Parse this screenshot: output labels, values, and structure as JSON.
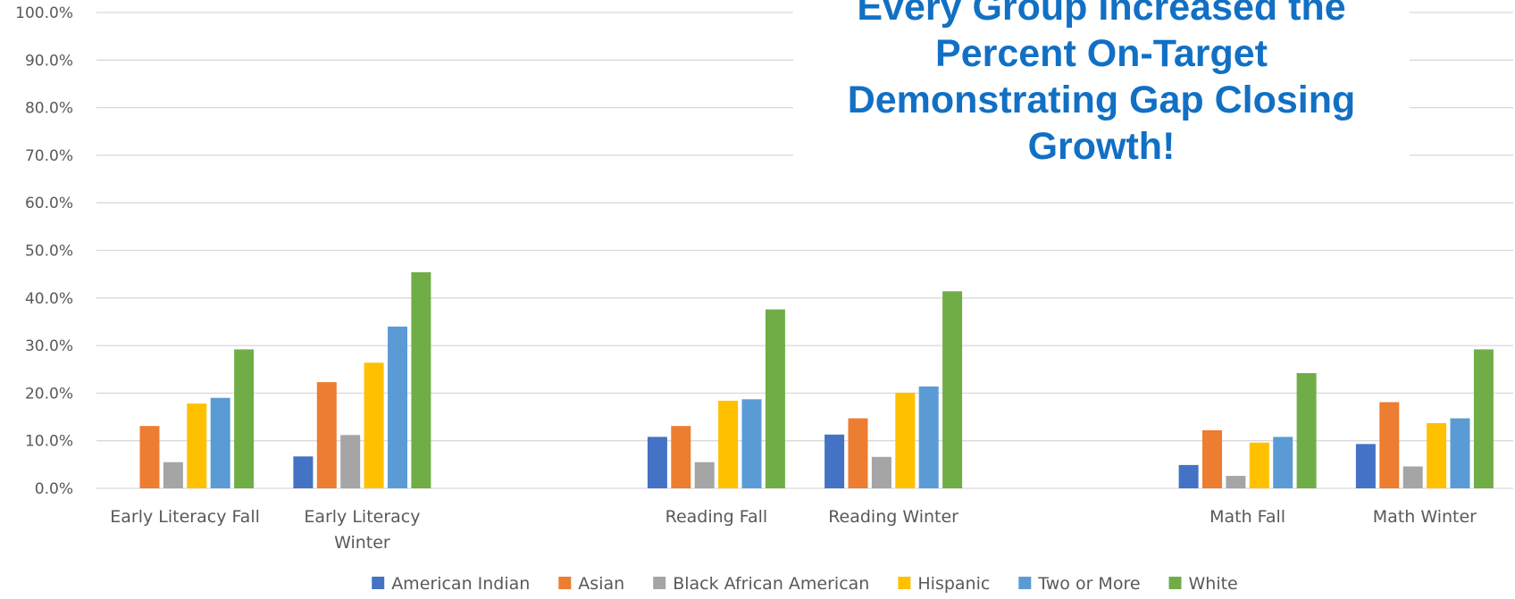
{
  "chart_data": {
    "type": "bar",
    "title": "",
    "annotation": {
      "lines": [
        "Every Group Increased the",
        "Percent On-Target",
        "Demonstrating Gap Closing",
        "Growth!"
      ],
      "color": "#1170c4"
    },
    "categories": [
      [
        "Early Literacy Fall"
      ],
      [
        "Early Literacy",
        "Winter"
      ],
      [
        ""
      ],
      [
        "Reading Fall"
      ],
      [
        "Reading Winter"
      ],
      [
        ""
      ],
      [
        "Math Fall"
      ],
      [
        "Math Winter"
      ]
    ],
    "series": [
      {
        "name": "American Indian",
        "color": "#4472c4",
        "values": [
          null,
          6.7,
          null,
          10.8,
          11.3,
          null,
          4.9,
          9.3
        ]
      },
      {
        "name": "Asian",
        "color": "#ed7d31",
        "values": [
          13.1,
          22.3,
          null,
          13.1,
          14.7,
          null,
          12.2,
          18.1
        ]
      },
      {
        "name": "Black African American",
        "color": "#a5a5a5",
        "values": [
          5.5,
          11.2,
          null,
          5.5,
          6.6,
          null,
          2.6,
          4.6
        ]
      },
      {
        "name": "Hispanic",
        "color": "#ffc000",
        "values": [
          17.8,
          26.4,
          null,
          18.4,
          20.1,
          null,
          9.6,
          13.7
        ]
      },
      {
        "name": "Two or More",
        "color": "#5b9bd5",
        "values": [
          19.0,
          34.0,
          null,
          18.7,
          21.4,
          null,
          10.8,
          14.7
        ]
      },
      {
        "name": "White",
        "color": "#70ad47",
        "values": [
          29.2,
          45.4,
          null,
          37.6,
          41.4,
          null,
          24.2,
          29.2
        ]
      }
    ],
    "ylim": [
      0,
      100
    ],
    "y_ticks": [
      0,
      10,
      20,
      30,
      40,
      50,
      60,
      70,
      80,
      90,
      100
    ],
    "y_tick_labels": [
      "0.0%",
      "10.0%",
      "20.0%",
      "30.0%",
      "40.0%",
      "50.0%",
      "60.0%",
      "70.0%",
      "80.0%",
      "90.0%",
      "100.0%"
    ],
    "xlabel": "",
    "ylabel": "",
    "grid": true,
    "legend_position": "bottom"
  }
}
